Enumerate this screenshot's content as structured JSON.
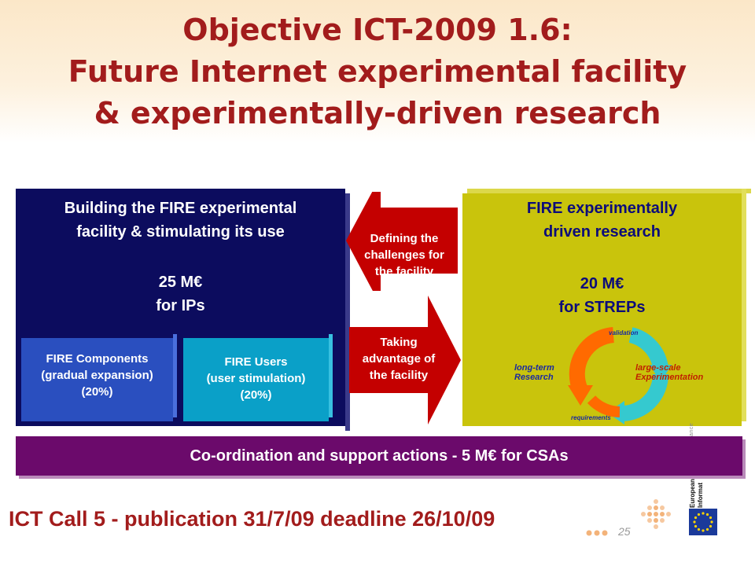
{
  "slide": {
    "title_lines": [
      "Objective ICT-2009 1.6:",
      "Future Internet experimental facility",
      "& experimentally-driven research"
    ],
    "left_box": {
      "heading_line1": "Building the FIRE experimental",
      "heading_line2": "facility & stimulating its use",
      "amount_line1": "25 M€",
      "amount_line2": "for IPs",
      "components": {
        "line1": "FIRE Components",
        "line2": "(gradual expansion)",
        "line3": "(20%)"
      },
      "users": {
        "line1": "FIRE Users",
        "line2": "(user stimulation)",
        "line3": "(20%)"
      }
    },
    "right_box": {
      "heading_line1": "FIRE experimentally",
      "heading_line2": "driven research",
      "amount_line1": "20 M€",
      "amount_line2": "for STREPs"
    },
    "arrow_up": {
      "line1": "Defining the",
      "line2": "challenges for",
      "line3": "the facility"
    },
    "arrow_down": {
      "line1": "Taking",
      "line2": "advantage of",
      "line3": "the facility"
    },
    "cycle": {
      "top": "validation",
      "left_line1": "long-term",
      "left_line2": "Research",
      "right_line1": "large-scale",
      "right_line2": "Experimentation",
      "bottom": "requirements"
    },
    "vertical_note": "ance",
    "bottom_bar": "Co-ordination and support actions - 5 M€ for CSAs",
    "call": "ICT Call 5 - publication 31/7/09 deadline 26/10/09",
    "page_number": "25",
    "logo": {
      "line1": "European",
      "line2": "Informat"
    }
  },
  "colors": {
    "title_red": "#a21c1c",
    "navy": "#0c0c5e",
    "olive_yellow": "#c9c40c",
    "arrow_red": "#c40000",
    "purple": "#6b0a6b",
    "sub_blue": "#2a4fbf",
    "sub_cyan": "#0aa0c8",
    "orange": "#ff6a00",
    "teal": "#35c9cf"
  }
}
